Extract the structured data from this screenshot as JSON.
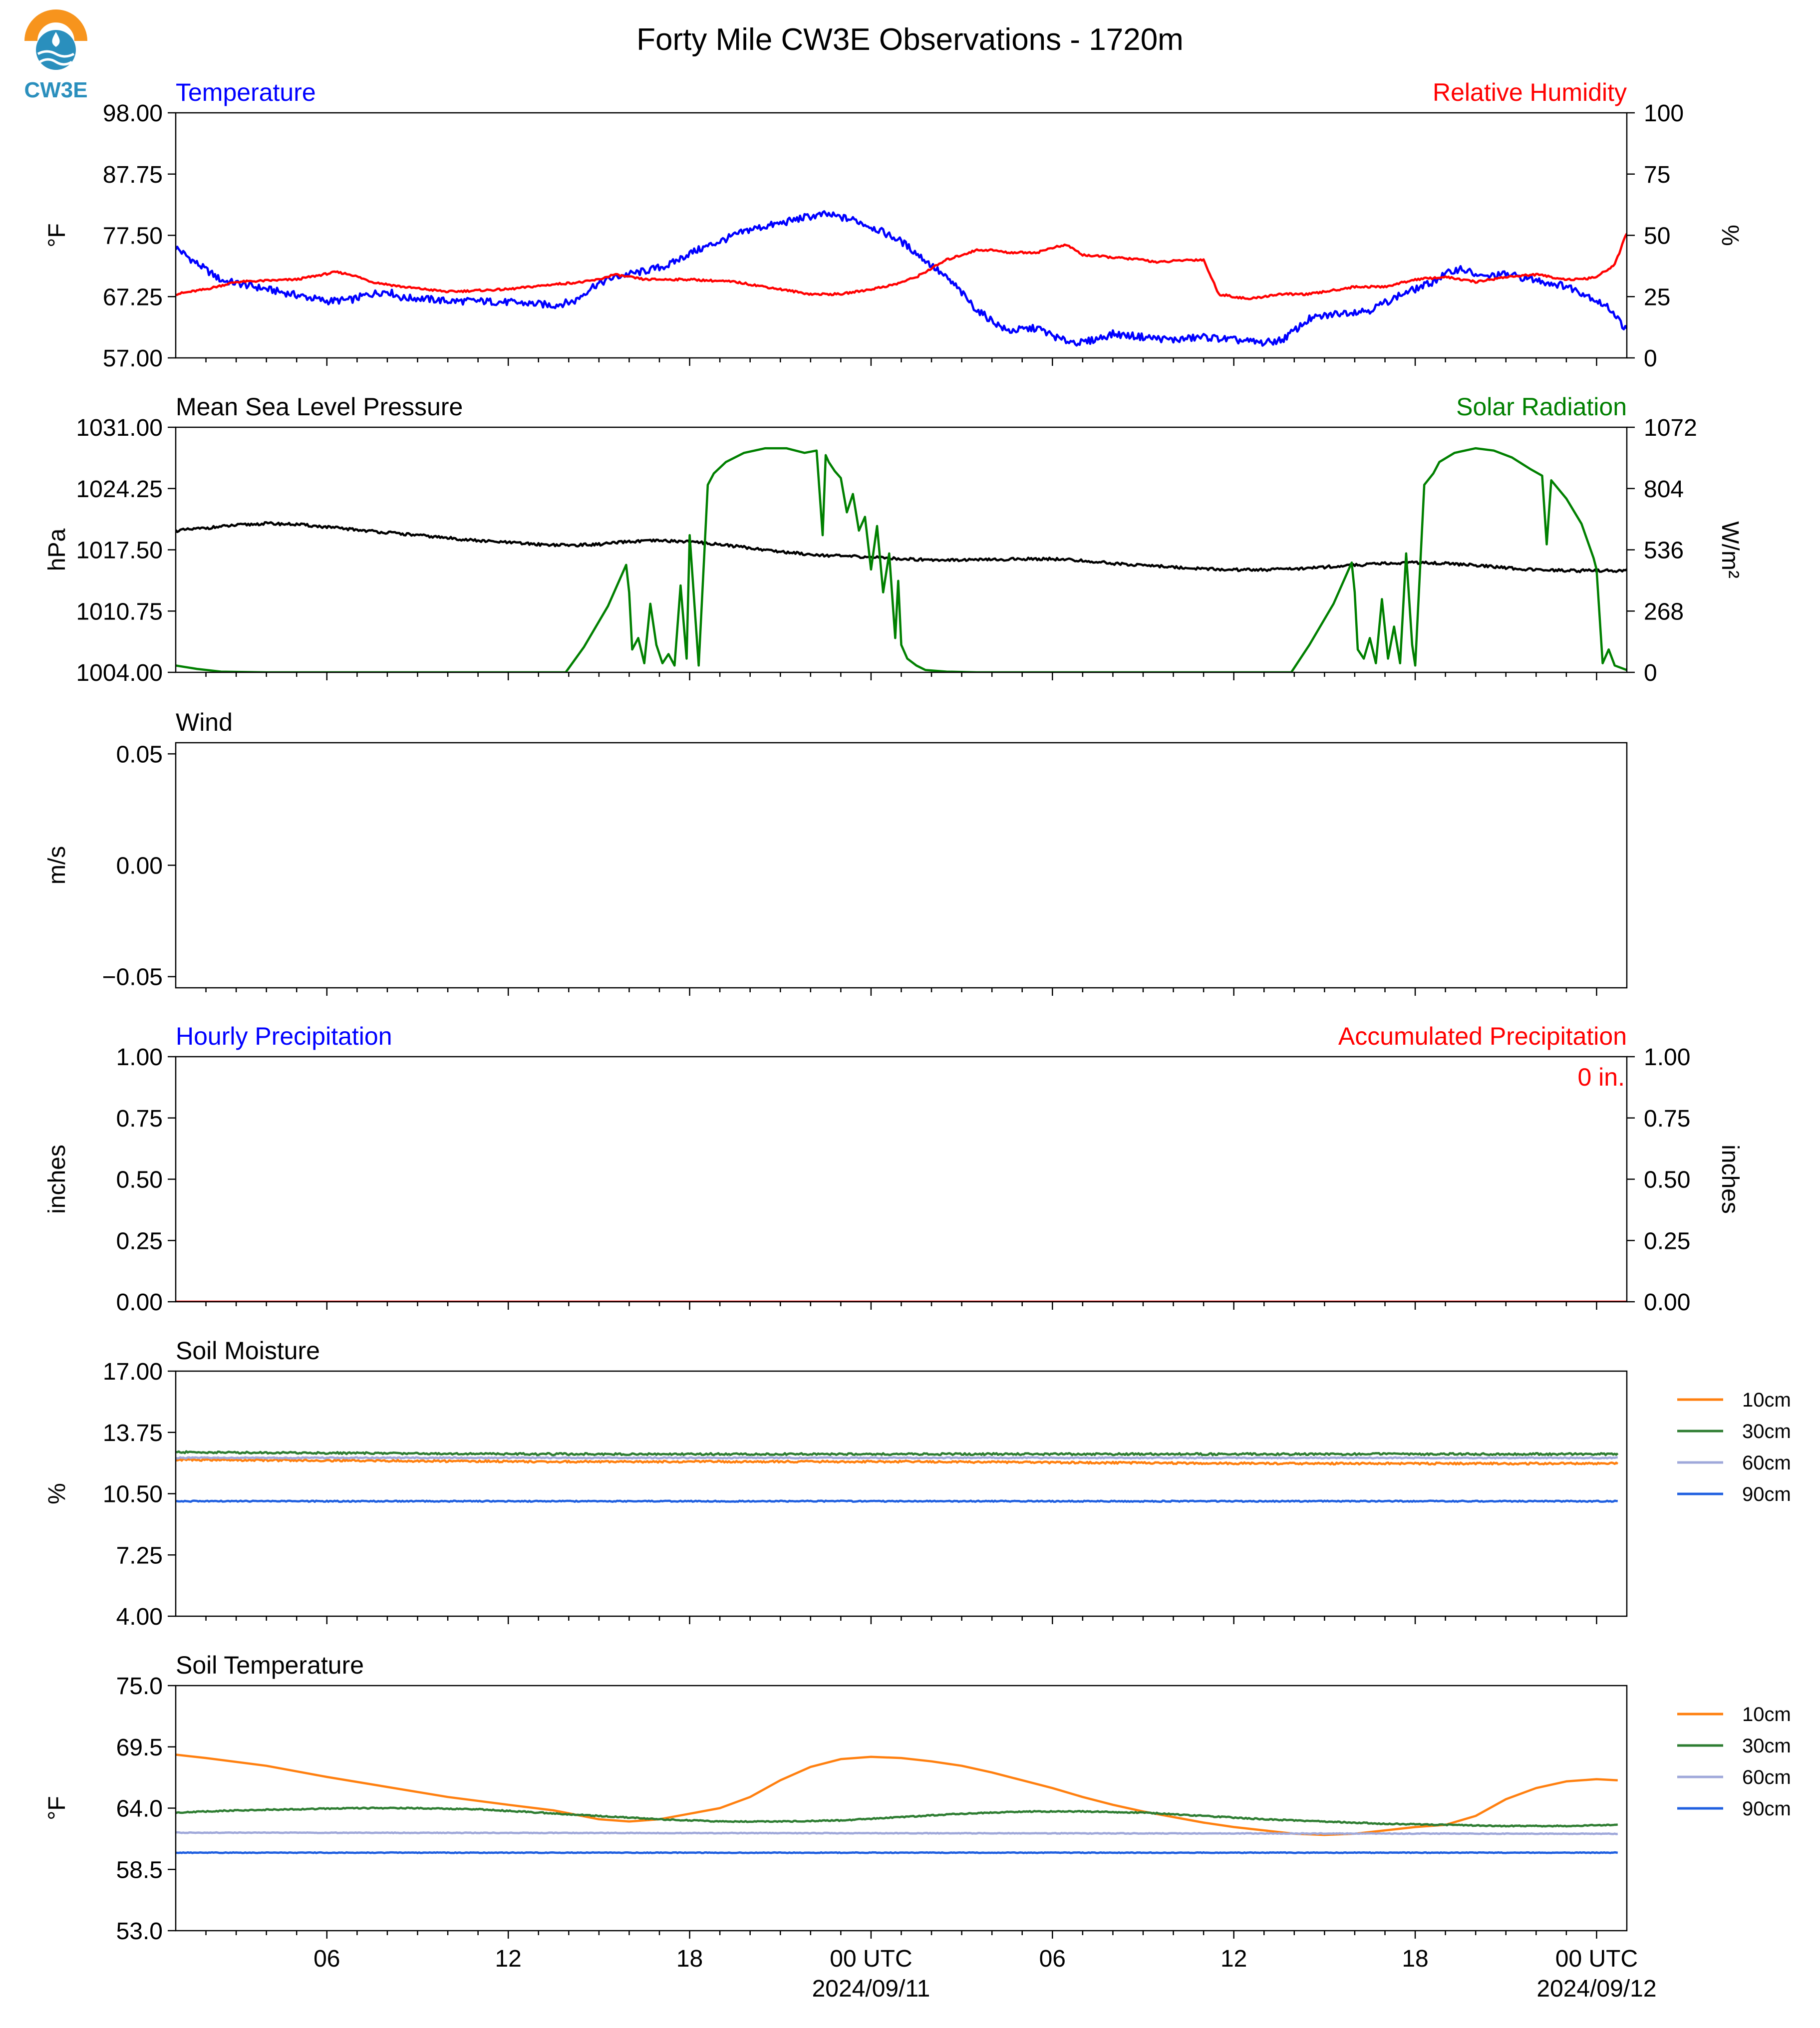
{
  "figure_title": "Forty Mile CW3E Observations - 1720m",
  "logo": {
    "text": "CW3E",
    "accent": "#f7941d",
    "brand": "#2a8fbd"
  },
  "x_axis": {
    "range_hours": [
      0,
      48
    ],
    "major_ticks": [
      {
        "h": 5,
        "label": "06"
      },
      {
        "h": 11,
        "label": "12"
      },
      {
        "h": 17,
        "label": "18"
      },
      {
        "h": 23,
        "label": "00 UTC",
        "date": "2024/09/11"
      },
      {
        "h": 29,
        "label": "06"
      },
      {
        "h": 35,
        "label": "12"
      },
      {
        "h": 41,
        "label": "18"
      },
      {
        "h": 47,
        "label": "00 UTC",
        "date": "2024/09/12"
      }
    ]
  },
  "chart_data": [
    {
      "id": "temp",
      "type": "line",
      "title": "Temperature",
      "title_color": "#0000ff",
      "right_title": "Relative Humidity",
      "right_title_color": "#ff0000",
      "ylabel": "°F",
      "ylim": [
        57.0,
        98.0
      ],
      "yticks": [
        "57.00",
        "67.25",
        "77.50",
        "87.75",
        "98.00"
      ],
      "y2label": "%",
      "y2lim": [
        0,
        100
      ],
      "y2ticks": [
        "0",
        "25",
        "50",
        "75",
        "100"
      ],
      "series": [
        {
          "color": "#0000ff",
          "axis": "left",
          "noise": 0.6,
          "x": [
            0,
            0.5,
            1.5,
            2.5,
            4,
            5,
            5.8,
            6.3,
            7,
            7.5,
            8,
            9,
            10,
            11,
            12,
            12.5,
            13.2,
            13.8,
            14.5,
            15.5,
            16.3,
            17,
            18,
            19,
            20,
            20.8,
            21.5,
            22.5,
            23.2,
            24,
            25,
            25.8,
            26.5,
            27.5,
            28.5,
            29.3,
            30,
            31,
            32,
            33,
            34,
            35,
            36,
            36.6,
            37.5,
            38.5,
            39.5,
            40.5,
            41.5,
            42,
            42.5,
            43.2,
            44,
            45,
            46,
            46.7,
            47.5,
            48
          ],
          "y": [
            75.5,
            73.5,
            70.0,
            69.0,
            67.5,
            66.5,
            66.7,
            67.5,
            68.2,
            67.0,
            67.0,
            66.5,
            66.5,
            66.3,
            66.0,
            65.8,
            66.5,
            69.0,
            70.5,
            71.5,
            72.5,
            74.5,
            76.5,
            78.5,
            79.5,
            80.5,
            81.0,
            80.0,
            78.5,
            76.5,
            72.5,
            69.0,
            65.0,
            61.5,
            62.0,
            60.0,
            59.5,
            61.0,
            60.5,
            60.0,
            60.5,
            60.0,
            59.5,
            60.0,
            63.5,
            64.5,
            65.0,
            67.5,
            69.5,
            71.0,
            72.0,
            70.5,
            71.0,
            70.0,
            69.0,
            67.5,
            65.0,
            61.5
          ]
        },
        {
          "color": "#ff0000",
          "axis": "right",
          "noise": 0.4,
          "x": [
            0,
            1,
            2,
            4,
            5.3,
            5.8,
            6.5,
            7.5,
            9,
            11,
            12.5,
            13.5,
            14,
            14.5,
            15.5,
            17,
            18.5,
            20,
            21,
            22,
            23,
            23.8,
            24.5,
            25.5,
            26.5,
            27,
            27.5,
            28.5,
            29,
            29.5,
            30,
            31,
            32,
            32.5,
            33.5,
            34,
            34.5,
            35.5,
            36.5,
            37,
            37.5,
            38.5,
            39,
            40,
            41,
            42,
            43,
            44,
            45,
            45.5,
            46,
            46.5,
            47,
            47.6,
            48
          ],
          "y": [
            26,
            28,
            31,
            32,
            35,
            34,
            31,
            29,
            27,
            28,
            30,
            31,
            32,
            34,
            32,
            32,
            31,
            28,
            26,
            26,
            28,
            30,
            33,
            40,
            44,
            44,
            43,
            43,
            45,
            46,
            42,
            41,
            40,
            39,
            40,
            40,
            26,
            24,
            26,
            26,
            26,
            28,
            29,
            29,
            32,
            33,
            31,
            33,
            34,
            33,
            32,
            32,
            33,
            38,
            51
          ]
        }
      ]
    },
    {
      "id": "pressure",
      "type": "line",
      "title": "Mean Sea Level Pressure",
      "title_color": "#000000",
      "right_title": "Solar Radiation",
      "right_title_color": "#008000",
      "ylabel": "hPa",
      "ylim": [
        1004.0,
        1031.0
      ],
      "yticks": [
        "1004.00",
        "1010.75",
        "1017.50",
        "1024.25",
        "1031.00"
      ],
      "y2label": "W/m²",
      "y2lim": [
        0,
        1072
      ],
      "y2ticks": [
        "0",
        "268",
        "536",
        "804",
        "1072"
      ],
      "series": [
        {
          "color": "#000000",
          "axis": "left",
          "noise": 0.15,
          "x": [
            0,
            1,
            2,
            3,
            4,
            5,
            6,
            7,
            8,
            9,
            10,
            11,
            12,
            13,
            14,
            15,
            16,
            17,
            18,
            19,
            20,
            21,
            22,
            23,
            24,
            25,
            26,
            27,
            28,
            29,
            30,
            31,
            32,
            33,
            34,
            35,
            36,
            37,
            38,
            39,
            40,
            41,
            42,
            43,
            44,
            45,
            46,
            47,
            48
          ],
          "y": [
            1019.6,
            1019.9,
            1020.2,
            1020.4,
            1020.3,
            1020.0,
            1019.7,
            1019.4,
            1019.1,
            1018.8,
            1018.5,
            1018.3,
            1018.1,
            1018.0,
            1018.1,
            1018.4,
            1018.5,
            1018.4,
            1018.1,
            1017.7,
            1017.3,
            1017.0,
            1016.8,
            1016.7,
            1016.5,
            1016.4,
            1016.4,
            1016.4,
            1016.5,
            1016.5,
            1016.3,
            1016.0,
            1015.8,
            1015.6,
            1015.4,
            1015.3,
            1015.3,
            1015.4,
            1015.6,
            1015.8,
            1016.0,
            1016.1,
            1016.0,
            1015.8,
            1015.5,
            1015.3,
            1015.2,
            1015.2,
            1015.2
          ]
        },
        {
          "color": "#008000",
          "axis": "right",
          "noise": 0,
          "x": [
            0,
            0.7,
            1.5,
            3,
            6,
            9,
            12,
            12.9,
            13.5,
            14.3,
            14.9,
            15.0,
            15.1,
            15.3,
            15.5,
            15.7,
            15.9,
            16.1,
            16.3,
            16.5,
            16.7,
            16.9,
            17.0,
            17.3,
            17.6,
            17.8,
            18.2,
            18.8,
            19.5,
            20.2,
            20.8,
            21.2,
            21.4,
            21.5,
            21.6,
            21.8,
            22.0,
            22.2,
            22.4,
            22.6,
            22.8,
            23.0,
            23.2,
            23.4,
            23.6,
            23.8,
            23.9,
            24.0,
            24.2,
            24.5,
            24.8,
            25.5,
            26.5,
            28,
            31,
            34,
            36.9,
            37.5,
            38.3,
            38.9,
            39.0,
            39.1,
            39.3,
            39.5,
            39.7,
            39.9,
            40.1,
            40.3,
            40.5,
            40.7,
            40.9,
            41.0,
            41.3,
            41.6,
            41.8,
            42.3,
            43.0,
            43.6,
            44.2,
            44.8,
            45.2,
            45.35,
            45.5,
            46.0,
            46.5,
            46.9,
            47.0,
            47.2,
            47.4,
            47.6,
            47.8,
            48
          ],
          "y": [
            30,
            15,
            3,
            0,
            0,
            0,
            0,
            0,
            110,
            290,
            470,
            350,
            100,
            150,
            40,
            300,
            120,
            40,
            80,
            30,
            380,
            60,
            600,
            30,
            820,
            870,
            920,
            960,
            980,
            980,
            960,
            970,
            600,
            950,
            920,
            880,
            850,
            700,
            780,
            620,
            680,
            450,
            640,
            350,
            520,
            150,
            400,
            120,
            60,
            30,
            10,
            3,
            0,
            0,
            0,
            0,
            0,
            120,
            300,
            480,
            350,
            100,
            60,
            150,
            40,
            320,
            60,
            200,
            40,
            520,
            120,
            30,
            820,
            870,
            920,
            960,
            980,
            970,
            940,
            890,
            860,
            560,
            840,
            760,
            650,
            500,
            450,
            40,
            100,
            30,
            20,
            10
          ]
        }
      ]
    },
    {
      "id": "wind",
      "type": "line",
      "title": "Wind",
      "title_color": "#000000",
      "right_title": "",
      "ylabel": "m/s",
      "ylim": [
        -0.055,
        0.055
      ],
      "yticks_at": [
        -0.05,
        0.0,
        0.05
      ],
      "yticks": [
        "−0.05",
        "0.00",
        "0.05"
      ],
      "series": []
    },
    {
      "id": "precip",
      "type": "line",
      "title": "Hourly Precipitation",
      "title_color": "#0000ff",
      "right_title": "Accumulated Precipitation",
      "right_title_color": "#ff0000",
      "annotation": "0 in.",
      "annotation_color": "#ff0000",
      "ylabel": "inches",
      "ylim": [
        0,
        1
      ],
      "yticks": [
        "0.00",
        "0.25",
        "0.50",
        "0.75",
        "1.00"
      ],
      "y2label": "inches",
      "y2lim": [
        0,
        1
      ],
      "y2ticks": [
        "0.00",
        "0.25",
        "0.50",
        "0.75",
        "1.00"
      ],
      "series": [
        {
          "color": "#ff0000",
          "axis": "right",
          "noise": 0,
          "x": [
            0,
            48
          ],
          "y": [
            0,
            0
          ]
        }
      ]
    },
    {
      "id": "soilmoist",
      "type": "line",
      "title": "Soil Moisture",
      "title_color": "#000000",
      "right_title": "",
      "ylabel": "%",
      "ylim": [
        4.0,
        17.0
      ],
      "yticks": [
        "4.00",
        "7.25",
        "10.50",
        "13.75",
        "17.00"
      ],
      "legend": {
        "placement": "right",
        "entries": [
          {
            "name": "10cm",
            "color": "#ff7f0e"
          },
          {
            "name": "30cm",
            "color": "#2e7d32"
          },
          {
            "name": "60cm",
            "color": "#9fa8da"
          },
          {
            "name": "90cm",
            "color": "#1f5fe0"
          }
        ]
      },
      "series": [
        {
          "name": "10cm",
          "color": "#ff7f0e",
          "axis": "left",
          "noise": 0.05,
          "x": [
            0,
            12,
            24,
            36,
            47.7
          ],
          "y": [
            12.3,
            12.2,
            12.2,
            12.1,
            12.1
          ]
        },
        {
          "name": "30cm",
          "color": "#2e7d32",
          "axis": "left",
          "noise": 0.05,
          "x": [
            0,
            12,
            24,
            36,
            47.7
          ],
          "y": [
            12.7,
            12.6,
            12.6,
            12.6,
            12.6
          ]
        },
        {
          "name": "60cm",
          "color": "#9fa8da",
          "axis": "left",
          "noise": 0.03,
          "x": [
            0,
            47.7
          ],
          "y": [
            12.4,
            12.4
          ]
        },
        {
          "name": "90cm",
          "color": "#1f5fe0",
          "axis": "left",
          "noise": 0.03,
          "x": [
            0,
            47.7
          ],
          "y": [
            10.1,
            10.1
          ]
        }
      ]
    },
    {
      "id": "soiltemp",
      "type": "line",
      "title": "Soil Temperature",
      "title_color": "#000000",
      "right_title": "",
      "ylabel": "°F",
      "ylim": [
        53.0,
        75.0
      ],
      "yticks": [
        "53.0",
        "58.5",
        "64.0",
        "69.5",
        "75.0"
      ],
      "legend": {
        "placement": "right",
        "entries": [
          {
            "name": "10cm",
            "color": "#ff7f0e"
          },
          {
            "name": "30cm",
            "color": "#2e7d32"
          },
          {
            "name": "60cm",
            "color": "#9fa8da"
          },
          {
            "name": "90cm",
            "color": "#1f5fe0"
          }
        ]
      },
      "series": [
        {
          "name": "10cm",
          "color": "#ff7f0e",
          "axis": "left",
          "noise": 0,
          "x": [
            0,
            1,
            3,
            5,
            7,
            9,
            11,
            12.5,
            14,
            15,
            16,
            17,
            18,
            19,
            20,
            21,
            22,
            23,
            24,
            25,
            26,
            27,
            28,
            29,
            30,
            31,
            32,
            33,
            34,
            35,
            36,
            37,
            38,
            39,
            40,
            41,
            42,
            43,
            44,
            45,
            46,
            47,
            47.7
          ],
          "y": [
            68.8,
            68.5,
            67.8,
            66.8,
            65.9,
            65.0,
            64.3,
            63.8,
            63.0,
            62.8,
            63.0,
            63.5,
            64.0,
            65.0,
            66.5,
            67.7,
            68.4,
            68.6,
            68.5,
            68.2,
            67.8,
            67.2,
            66.5,
            65.8,
            65.0,
            64.3,
            63.7,
            63.2,
            62.7,
            62.3,
            62.0,
            61.7,
            61.6,
            61.7,
            62.0,
            62.3,
            62.5,
            63.3,
            64.8,
            65.8,
            66.4,
            66.6,
            66.5
          ]
        },
        {
          "name": "30cm",
          "color": "#2e7d32",
          "axis": "left",
          "noise": 0.05,
          "x": [
            0,
            2,
            4,
            6,
            8,
            10,
            12,
            14,
            16,
            18,
            20,
            22,
            24,
            26,
            28,
            30,
            32,
            34,
            36,
            38,
            40,
            42,
            44,
            46,
            47.7
          ],
          "y": [
            63.6,
            63.8,
            63.9,
            64.0,
            64.0,
            63.9,
            63.6,
            63.3,
            63.0,
            62.8,
            62.8,
            62.9,
            63.2,
            63.5,
            63.7,
            63.7,
            63.6,
            63.3,
            63.0,
            62.8,
            62.6,
            62.5,
            62.4,
            62.4,
            62.5
          ]
        },
        {
          "name": "60cm",
          "color": "#9fa8da",
          "axis": "left",
          "noise": 0.03,
          "x": [
            0,
            47.7
          ],
          "y": [
            61.8,
            61.7
          ]
        },
        {
          "name": "90cm",
          "color": "#1f5fe0",
          "axis": "left",
          "noise": 0.03,
          "x": [
            0,
            47.7
          ],
          "y": [
            60.0,
            60.0
          ]
        }
      ]
    }
  ]
}
